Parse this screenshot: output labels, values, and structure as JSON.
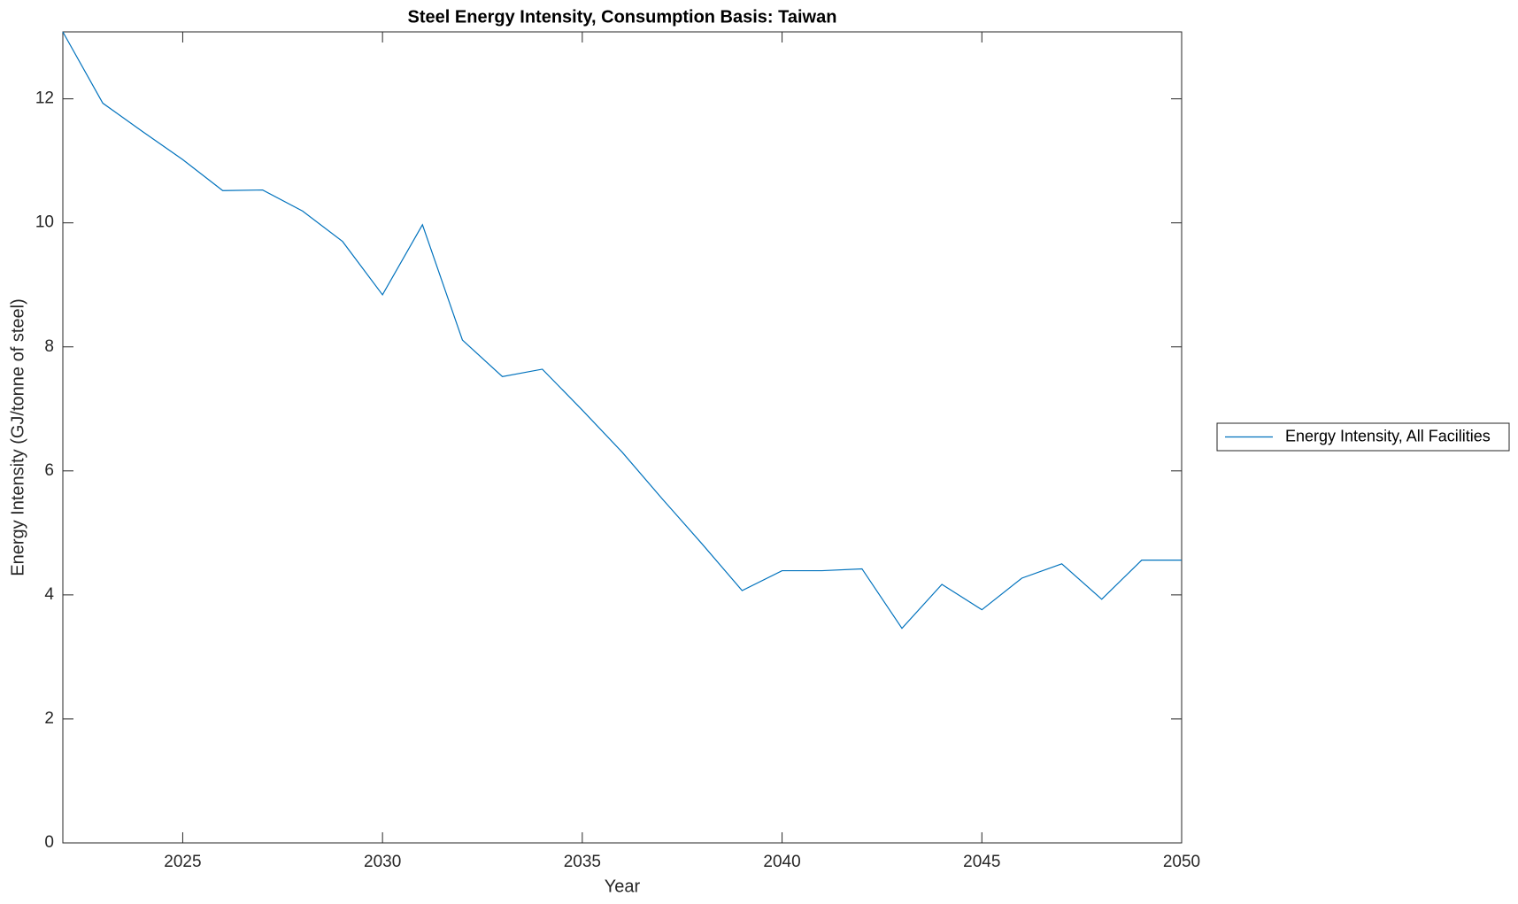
{
  "chart_data": {
    "type": "line",
    "title": "Steel Energy Intensity, Consumption Basis: Taiwan",
    "x_label": "Year",
    "y_label": "Energy Intensity (GJ/tonne of steel)",
    "x": [
      2022,
      2023,
      2024,
      2025,
      2026,
      2027,
      2028,
      2029,
      2030,
      2031,
      2032,
      2033,
      2034,
      2035,
      2036,
      2037,
      2038,
      2039,
      2040,
      2041,
      2042,
      2043,
      2044,
      2045,
      2046,
      2047,
      2048,
      2049,
      2050
    ],
    "series": [
      {
        "name": "Energy Intensity, All Facilities",
        "color": "#0072bd",
        "values": [
          13.08,
          11.93,
          11.47,
          11.02,
          10.52,
          10.53,
          10.19,
          9.7,
          8.84,
          9.97,
          8.11,
          7.52,
          7.64,
          6.98,
          6.3,
          5.55,
          4.82,
          4.07,
          4.39,
          4.39,
          4.42,
          3.46,
          4.17,
          3.76,
          4.27,
          4.5,
          3.93,
          4.56,
          4.56
        ]
      }
    ],
    "xlim": [
      2022,
      2050
    ],
    "xticks": [
      2025,
      2030,
      2035,
      2040,
      2045,
      2050
    ],
    "ylim": [
      0,
      13.08
    ],
    "yticks": [
      0,
      2,
      4,
      6,
      8,
      10,
      12
    ],
    "grid": false,
    "legend": "eastoutside"
  }
}
